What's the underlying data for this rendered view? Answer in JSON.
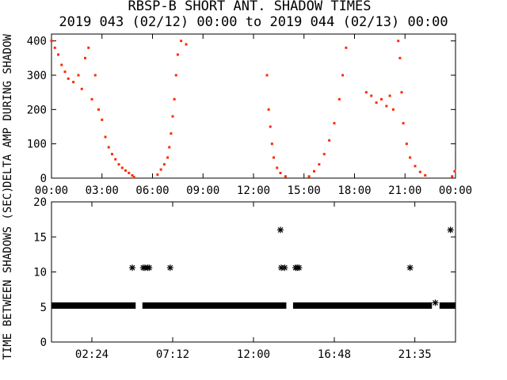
{
  "title_line1": "RBSP-B SHORT ANT. SHADOW TIMES",
  "title_line2": "2019 043 (02/12) 00:00 to 2019 044 (02/13) 00:00",
  "colors": {
    "points_top": "#ff2a00",
    "points_bottom": "#000000",
    "axes": "#000000"
  },
  "chart_data": [
    {
      "type": "scatter",
      "ylabel": "DELTA AMP DURING SHADOW",
      "ylim": [
        0,
        420
      ],
      "xlim_hours": [
        0,
        24
      ],
      "x_tick_labels": [
        "00:00",
        "03:00",
        "06:00",
        "09:00",
        "12:00",
        "15:00",
        "18:00",
        "21:00",
        "00:00"
      ],
      "y_tick_labels": [
        "0",
        "100",
        "200",
        "300",
        "400"
      ],
      "series": [
        {
          "points": [
            [
              0.0,
              400
            ],
            [
              0.2,
              380
            ],
            [
              0.4,
              360
            ],
            [
              0.6,
              330
            ],
            [
              0.8,
              310
            ],
            [
              1.0,
              290
            ],
            [
              1.3,
              280
            ],
            [
              1.6,
              300
            ],
            [
              1.8,
              260
            ],
            [
              2.0,
              350
            ],
            [
              2.2,
              380
            ],
            [
              2.4,
              230
            ],
            [
              2.6,
              300
            ],
            [
              2.8,
              200
            ],
            [
              3.0,
              170
            ],
            [
              3.2,
              120
            ],
            [
              3.4,
              90
            ],
            [
              3.6,
              70
            ],
            [
              3.8,
              55
            ],
            [
              4.0,
              40
            ],
            [
              4.2,
              30
            ],
            [
              4.4,
              22
            ],
            [
              4.6,
              15
            ],
            [
              4.8,
              8
            ],
            [
              4.9,
              3
            ],
            [
              6.3,
              10
            ],
            [
              6.5,
              25
            ],
            [
              6.7,
              40
            ],
            [
              6.9,
              60
            ],
            [
              7.0,
              90
            ],
            [
              7.1,
              130
            ],
            [
              7.2,
              180
            ],
            [
              7.3,
              230
            ],
            [
              7.4,
              300
            ],
            [
              7.5,
              360
            ],
            [
              7.7,
              400
            ],
            [
              8.0,
              390
            ],
            [
              12.8,
              300
            ],
            [
              12.9,
              200
            ],
            [
              13.0,
              150
            ],
            [
              13.1,
              100
            ],
            [
              13.2,
              60
            ],
            [
              13.4,
              30
            ],
            [
              13.6,
              15
            ],
            [
              13.9,
              5
            ],
            [
              15.3,
              5
            ],
            [
              15.6,
              20
            ],
            [
              15.9,
              40
            ],
            [
              16.2,
              70
            ],
            [
              16.5,
              110
            ],
            [
              16.8,
              160
            ],
            [
              17.1,
              230
            ],
            [
              17.3,
              300
            ],
            [
              17.5,
              380
            ],
            [
              18.7,
              250
            ],
            [
              19.0,
              240
            ],
            [
              19.3,
              220
            ],
            [
              19.6,
              230
            ],
            [
              19.9,
              210
            ],
            [
              20.1,
              240
            ],
            [
              20.3,
              200
            ],
            [
              20.6,
              400
            ],
            [
              20.7,
              350
            ],
            [
              20.8,
              250
            ],
            [
              20.9,
              160
            ],
            [
              21.1,
              100
            ],
            [
              21.3,
              60
            ],
            [
              21.6,
              35
            ],
            [
              21.9,
              18
            ],
            [
              22.2,
              8
            ],
            [
              23.8,
              5
            ],
            [
              23.95,
              20
            ]
          ]
        }
      ]
    },
    {
      "type": "scatter",
      "ylabel": "TIME BETWEEN SHADOWS (SEC)",
      "ylim": [
        0,
        20
      ],
      "xlim_hours": [
        0,
        24
      ],
      "x_tick_labels": [
        "02:24",
        "07:12",
        "12:00",
        "16:48",
        "21:35"
      ],
      "y_tick_labels": [
        "0",
        "5",
        "10",
        "15",
        "20"
      ],
      "baseline_value": 5.2,
      "baseline_gaps_hours": [
        [
          5.0,
          5.4
        ],
        [
          13.95,
          14.35
        ],
        [
          22.6,
          23.05
        ]
      ],
      "series": [
        {
          "points": [
            [
              4.8,
              10.6
            ],
            [
              5.45,
              10.6
            ],
            [
              5.55,
              10.6
            ],
            [
              5.7,
              10.6
            ],
            [
              5.8,
              10.6
            ],
            [
              7.05,
              10.6
            ],
            [
              13.6,
              16.0
            ],
            [
              13.65,
              10.6
            ],
            [
              13.85,
              10.6
            ],
            [
              14.5,
              10.6
            ],
            [
              14.6,
              10.6
            ],
            [
              14.7,
              10.6
            ],
            [
              21.3,
              10.6
            ],
            [
              22.8,
              5.6
            ],
            [
              23.7,
              16.0
            ]
          ]
        }
      ]
    }
  ]
}
